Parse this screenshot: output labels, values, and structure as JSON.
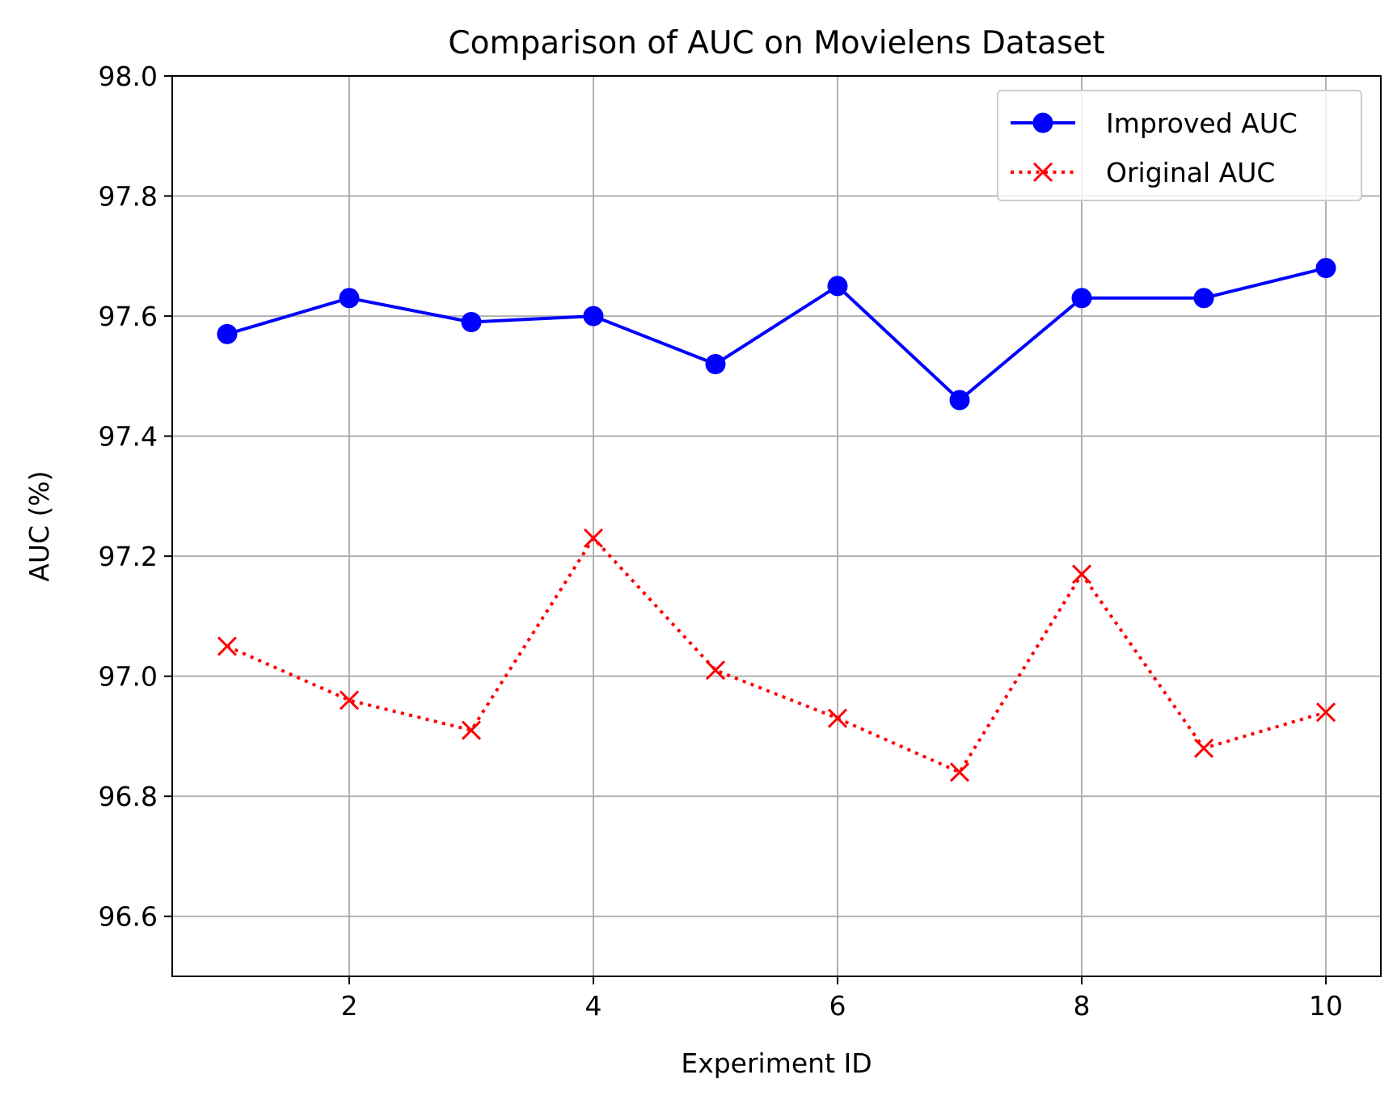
{
  "chart_data": {
    "type": "line",
    "title": "Comparison of AUC on Movielens Dataset",
    "xlabel": "Experiment ID",
    "ylabel": "AUC (%)",
    "xlim": [
      0.55,
      10.45
    ],
    "ylim": [
      96.5,
      98.0
    ],
    "x_ticks": [
      2,
      4,
      6,
      8,
      10
    ],
    "y_ticks": [
      96.6,
      96.8,
      97.0,
      97.2,
      97.4,
      97.6,
      97.8,
      98.0
    ],
    "x_tick_labels": [
      "2",
      "4",
      "6",
      "8",
      "10"
    ],
    "y_tick_labels": [
      "96.6",
      "96.8",
      "97.0",
      "97.2",
      "97.4",
      "97.6",
      "97.8",
      "98.0"
    ],
    "grid": true,
    "legend_position": "top-right",
    "x": [
      1,
      2,
      3,
      4,
      5,
      6,
      7,
      8,
      9,
      10
    ],
    "series": [
      {
        "name": "Improved AUC",
        "color": "#0000ff",
        "line_style": "solid",
        "marker": "circle",
        "values": [
          97.57,
          97.63,
          97.59,
          97.6,
          97.52,
          97.65,
          97.46,
          97.63,
          97.63,
          97.68
        ]
      },
      {
        "name": "Original AUC",
        "color": "#ff0000",
        "line_style": "dotted",
        "marker": "x",
        "values": [
          97.05,
          96.96,
          96.91,
          97.23,
          97.01,
          96.93,
          96.84,
          97.17,
          96.88,
          96.94
        ]
      }
    ]
  }
}
